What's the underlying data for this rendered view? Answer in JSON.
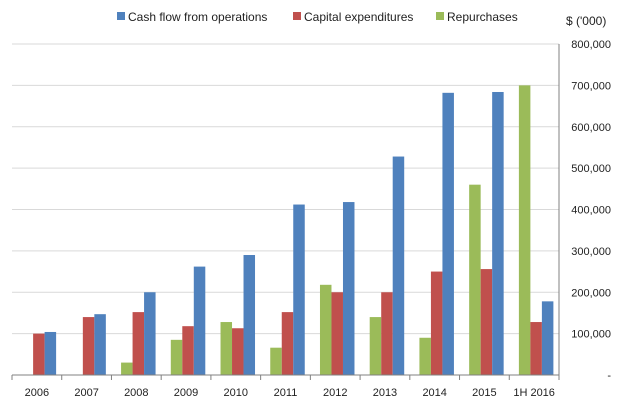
{
  "chart_data": {
    "type": "bar",
    "categories": [
      "2006",
      "2007",
      "2008",
      "2009",
      "2010",
      "2011",
      "2012",
      "2013",
      "2014",
      "2015",
      "1H 2016"
    ],
    "series": [
      {
        "name": "Repurchases",
        "color": "#9bbb59",
        "values": [
          0,
          0,
          30000,
          85000,
          128000,
          66000,
          218000,
          140000,
          90000,
          460000,
          700000
        ]
      },
      {
        "name": "Capital expenditures",
        "color": "#c0504d",
        "values": [
          100000,
          140000,
          152000,
          118000,
          113000,
          152000,
          200000,
          200000,
          250000,
          256000,
          128000
        ]
      },
      {
        "name": "Cash flow from operations",
        "color": "#4f81bd",
        "values": [
          104000,
          147000,
          200000,
          262000,
          290000,
          412000,
          418000,
          528000,
          682000,
          684000,
          178000
        ]
      }
    ],
    "legend_order": [
      "Cash flow from operations",
      "Capital expenditures",
      "Repurchases"
    ],
    "legend_position": "top",
    "ylabel": "$ ('000)",
    "ylim": [
      0,
      800000
    ],
    "yticks": [
      "-",
      "100,000",
      "200,000",
      "300,000",
      "400,000",
      "500,000",
      "600,000",
      "700,000",
      "800,000"
    ],
    "y_axis_side": "right",
    "grid": true
  }
}
